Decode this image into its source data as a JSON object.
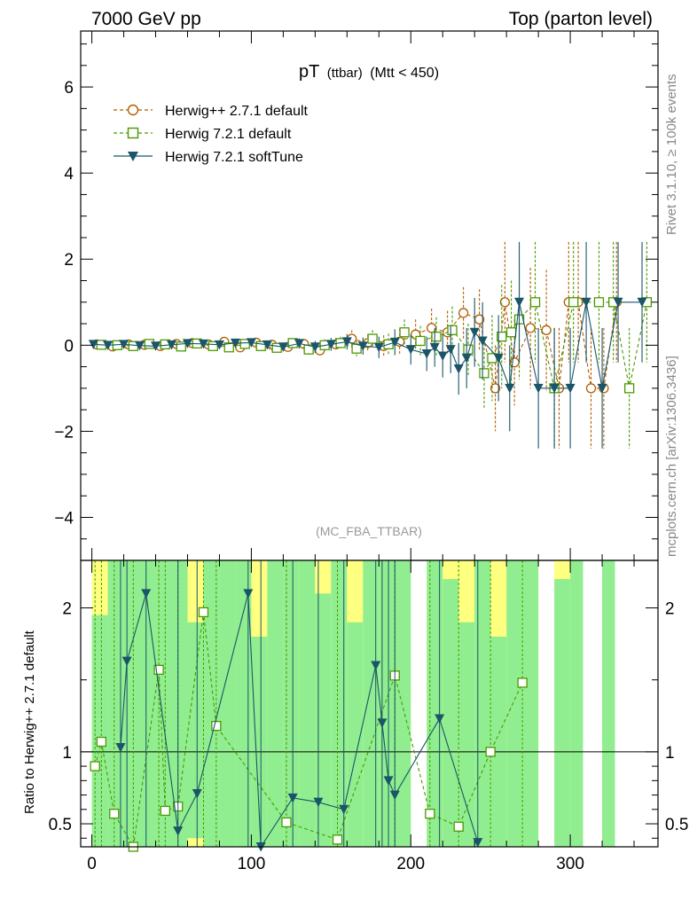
{
  "header": {
    "left": "7000 GeV pp",
    "right": "Top (parton level)"
  },
  "side_labels": {
    "rivet": "Rivet 3.1.10, ≥ 100k events",
    "mcplots": "mcplots.cern.ch [arXiv:1306.3436]"
  },
  "chart_data": [
    {
      "type": "scatter",
      "panel": "main",
      "title_main": "pT",
      "title_sub": "(ttbar)",
      "title_cut": "(Mtt < 450)",
      "analysis": "(MC_FBA_TTBAR)",
      "xlim": [
        -7,
        355
      ],
      "ylim": [
        -5,
        7.3
      ],
      "yticks": [
        -4,
        -2,
        0,
        2,
        4,
        6
      ],
      "ytick_labels": [
        "−4",
        "−2",
        "0",
        "2",
        "4",
        "6"
      ],
      "legend_position": "top-left",
      "series": [
        {
          "name": "Herwig++ 2.7.1 default",
          "marker": "open-circle",
          "line": "dashed",
          "color": "#b35c00",
          "x": [
            3,
            13,
            23,
            33,
            43,
            53,
            63,
            73,
            83,
            93,
            103,
            113,
            123,
            133,
            143,
            153,
            163,
            173,
            183,
            193,
            203,
            213,
            223,
            233,
            243,
            253,
            259,
            265,
            275,
            285,
            293,
            299,
            305,
            313,
            321,
            329
          ],
          "y": [
            0.02,
            -0.03,
            0.02,
            0.01,
            -0.02,
            0.03,
            0.05,
            0.02,
            0.08,
            -0.05,
            0.06,
            0.01,
            -0.04,
            0.03,
            -0.12,
            0.02,
            0.15,
            0.05,
            -0.02,
            0.08,
            0.25,
            0.4,
            0.3,
            0.75,
            0.6,
            -1.0,
            1.0,
            -0.4,
            0.4,
            0.35,
            -1.0,
            1.0,
            1.0,
            -1.0,
            -1.0,
            1.0
          ],
          "err": [
            0.05,
            0.05,
            0.05,
            0.05,
            0.05,
            0.06,
            0.07,
            0.07,
            0.08,
            0.08,
            0.09,
            0.1,
            0.1,
            0.12,
            0.15,
            0.15,
            0.2,
            0.2,
            0.25,
            0.3,
            0.35,
            0.45,
            0.5,
            0.6,
            0.7,
            1.0,
            1.4,
            1.0,
            1.4,
            1.4,
            1.4,
            1.4,
            1.4,
            1.4,
            1.4,
            1.4
          ]
        },
        {
          "name": "Herwig 7.2.1 default",
          "marker": "open-square",
          "line": "dashed",
          "color": "#4a9a00",
          "x": [
            6,
            16,
            26,
            36,
            46,
            56,
            66,
            76,
            86,
            96,
            106,
            116,
            126,
            136,
            146,
            156,
            166,
            176,
            186,
            196,
            206,
            216,
            226,
            236,
            246,
            251,
            257,
            263,
            268,
            278,
            290,
            302,
            318,
            327,
            337,
            348
          ],
          "y": [
            0.01,
            0.0,
            -0.02,
            0.03,
            0.02,
            -0.03,
            0.04,
            -0.02,
            -0.05,
            0.03,
            -0.02,
            -0.06,
            0.05,
            -0.1,
            0.0,
            0.05,
            -0.08,
            0.15,
            0.02,
            0.3,
            0.1,
            0.2,
            0.35,
            -0.1,
            -0.65,
            -0.3,
            0.2,
            0.3,
            0.6,
            1.0,
            -1.0,
            1.0,
            1.0,
            1.0,
            -1.0,
            1.0
          ],
          "err": [
            0.05,
            0.05,
            0.05,
            0.05,
            0.05,
            0.06,
            0.07,
            0.07,
            0.08,
            0.08,
            0.09,
            0.1,
            0.1,
            0.12,
            0.14,
            0.15,
            0.18,
            0.2,
            0.25,
            0.3,
            0.35,
            0.45,
            0.55,
            0.6,
            0.8,
            1.0,
            1.2,
            1.2,
            1.4,
            1.4,
            1.4,
            1.4,
            1.4,
            1.4,
            1.4,
            1.4
          ]
        },
        {
          "name": "Herwig 7.2.1 softTune",
          "marker": "filled-triangle-down",
          "line": "solid",
          "color": "#1a5569",
          "x": [
            1,
            10,
            20,
            30,
            40,
            50,
            60,
            70,
            80,
            90,
            100,
            110,
            120,
            130,
            140,
            150,
            160,
            170,
            180,
            190,
            200,
            210,
            215,
            220,
            225,
            230,
            235,
            240,
            245,
            255,
            262,
            268,
            280,
            290,
            300,
            310,
            320,
            330,
            345
          ],
          "y": [
            0.02,
            0.0,
            0.02,
            -0.01,
            -0.02,
            0.01,
            0.04,
            0.03,
            0.01,
            0.05,
            0.06,
            0.01,
            -0.04,
            0.04,
            -0.04,
            0.02,
            0.08,
            -0.02,
            -0.05,
            0.07,
            -0.1,
            -0.2,
            -0.05,
            -0.25,
            -0.1,
            -0.55,
            -0.3,
            0.3,
            0.1,
            -0.3,
            -1.0,
            1.0,
            -1.0,
            -1.0,
            -1.0,
            1.0,
            -1.0,
            1.0,
            1.0
          ],
          "err": [
            0.05,
            0.05,
            0.05,
            0.05,
            0.05,
            0.06,
            0.07,
            0.07,
            0.08,
            0.08,
            0.09,
            0.1,
            0.1,
            0.12,
            0.14,
            0.15,
            0.18,
            0.2,
            0.25,
            0.3,
            0.35,
            0.4,
            0.45,
            0.5,
            0.55,
            0.6,
            0.7,
            0.8,
            0.9,
            1.0,
            1.0,
            1.4,
            1.4,
            1.4,
            1.4,
            1.4,
            1.4,
            1.4,
            1.4
          ]
        }
      ]
    },
    {
      "type": "scatter",
      "panel": "ratio",
      "ylabel": "Ratio to Herwig++ 2.7.1 default",
      "xlim": [
        -7,
        355
      ],
      "ylim": [
        0.34,
        2.33
      ],
      "yticks": [
        0.5,
        1,
        2
      ],
      "ytick_labels": [
        "0.5",
        "1",
        "2"
      ],
      "xticks": [
        0,
        100,
        200,
        300
      ],
      "xtick_labels": [
        "0",
        "100",
        "200",
        "300"
      ],
      "reference_line": 1,
      "bands": {
        "inner_color": "#90ee90",
        "outer_color": "#ffff80",
        "x": [
          0,
          10,
          20,
          30,
          40,
          50,
          60,
          70,
          80,
          90,
          100,
          110,
          120,
          130,
          140,
          150,
          160,
          170,
          180,
          190,
          210,
          220,
          230,
          240,
          250,
          260,
          270,
          290,
          300,
          320
        ],
        "width": [
          10,
          10,
          10,
          10,
          10,
          10,
          10,
          10,
          10,
          10,
          10,
          10,
          10,
          10,
          10,
          10,
          10,
          10,
          10,
          10,
          10,
          10,
          10,
          10,
          10,
          10,
          10,
          10,
          8,
          8
        ],
        "inner_lo": [
          0.34,
          0.34,
          0.34,
          0.34,
          0.34,
          0.34,
          0.4,
          0.34,
          0.34,
          0.34,
          0.34,
          0.34,
          0.34,
          0.34,
          0.34,
          0.34,
          0.34,
          0.34,
          0.34,
          0.34,
          0.34,
          0.34,
          0.34,
          0.34,
          0.34,
          0.34,
          0.34,
          0.34,
          0.34,
          0.34
        ],
        "inner_hi": [
          1.95,
          2.33,
          2.33,
          2.33,
          2.33,
          2.33,
          1.9,
          2.33,
          2.33,
          2.33,
          1.8,
          2.33,
          2.33,
          2.33,
          2.1,
          2.33,
          1.9,
          2.33,
          2.33,
          2.33,
          2.33,
          2.2,
          1.9,
          2.33,
          1.8,
          2.33,
          2.33,
          2.2,
          2.33,
          2.33
        ],
        "outer_lo": [
          0.34,
          0.34,
          0.34,
          0.34,
          0.34,
          0.34,
          0.34,
          0.34,
          0.34,
          0.34,
          0.34,
          0.34,
          0.34,
          0.34,
          0.34,
          0.34,
          0.34,
          0.34,
          0.34,
          0.34,
          0.34,
          0.34,
          0.34,
          0.34,
          0.34,
          0.34,
          0.34,
          0.34,
          0.34,
          0.34
        ],
        "outer_hi": [
          2.33,
          2.33,
          2.33,
          2.33,
          2.33,
          2.33,
          2.33,
          2.33,
          2.33,
          2.33,
          2.33,
          2.33,
          2.33,
          2.33,
          2.33,
          2.33,
          2.33,
          2.33,
          2.33,
          2.33,
          2.33,
          2.33,
          2.33,
          2.33,
          2.33,
          2.33,
          2.33,
          2.33,
          2.33,
          2.33
        ]
      },
      "series": [
        {
          "name": "Herwig 7.2.1 default",
          "marker": "open-square",
          "line": "dashed",
          "color": "#4a9a00",
          "x": [
            2,
            6,
            14,
            26,
            42,
            46,
            54,
            70,
            78,
            122,
            154,
            190,
            212,
            230,
            250,
            270
          ],
          "y": [
            0.9,
            1.07,
            0.57,
            0.34,
            1.57,
            0.59,
            0.62,
            1.97,
            1.18,
            0.51,
            0.39,
            1.53,
            0.57,
            0.48,
            1.0,
            1.48
          ]
        },
        {
          "name": "Herwig 7.2.1 softTune",
          "marker": "filled-triangle-down",
          "line": "solid",
          "color": "#1a5569",
          "x": [
            18,
            22,
            34,
            54,
            66,
            98,
            106,
            126,
            142,
            158,
            178,
            182,
            186,
            190,
            218,
            242
          ],
          "y": [
            1.03,
            1.63,
            2.1,
            0.45,
            0.71,
            2.1,
            0.34,
            0.68,
            0.65,
            0.6,
            1.6,
            1.2,
            0.8,
            0.7,
            1.23,
            0.37
          ]
        }
      ]
    }
  ]
}
